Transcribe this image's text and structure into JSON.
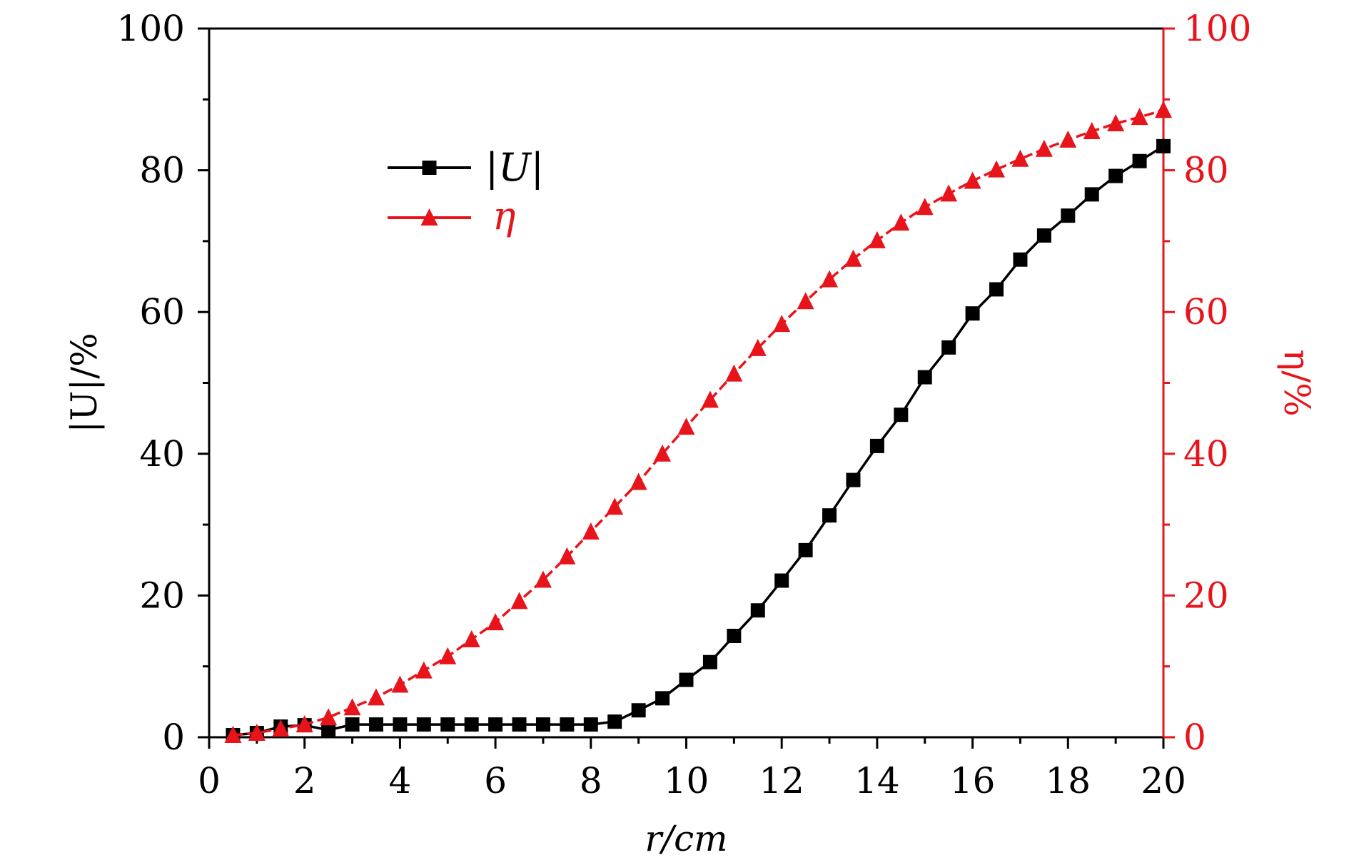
{
  "chart_data": {
    "type": "line",
    "title": "",
    "xlabel": "r/cm",
    "ylabel_left": "|U|/%",
    "ylabel_right": "η/%",
    "xlim": [
      0,
      20
    ],
    "ylim_left": [
      0,
      100
    ],
    "ylim_right": [
      0,
      100
    ],
    "grid": false,
    "legend_position": "upper-left",
    "x_ticks": [
      0,
      2,
      4,
      6,
      8,
      10,
      12,
      14,
      16,
      18,
      20
    ],
    "x_tick_labels": [
      "0",
      "2",
      "4",
      "6",
      "8",
      "10",
      "12",
      "14",
      "16",
      "18",
      "20"
    ],
    "y_left_ticks": [
      0,
      20,
      40,
      60,
      80,
      100
    ],
    "y_left_tick_labels": [
      "0",
      "20",
      "40",
      "60",
      "80",
      "100"
    ],
    "y_right_ticks": [
      0,
      20,
      40,
      60,
      80,
      100
    ],
    "y_right_tick_labels": [
      "0",
      "20",
      "40",
      "60",
      "80",
      "100"
    ],
    "colors": {
      "axis_left": "#000000",
      "axis_right": "#e8141b",
      "series_U": "#000000",
      "series_eta": "#e8141b"
    },
    "x": [
      0.5,
      1,
      1.5,
      2,
      2.5,
      3,
      3.5,
      4,
      4.5,
      5,
      5.5,
      6,
      6.5,
      7,
      7.5,
      8,
      8.5,
      9,
      9.5,
      10,
      10.5,
      11,
      11.5,
      12,
      12.5,
      13,
      13.5,
      14,
      14.5,
      15,
      15.5,
      16,
      16.5,
      17,
      17.5,
      18,
      18.5,
      19,
      19.5,
      20
    ],
    "series": [
      {
        "name": "|U|",
        "axis": "left",
        "marker": "square",
        "values": [
          0.3,
          0.6,
          1.5,
          1.7,
          1.0,
          1.8,
          1.8,
          1.8,
          1.8,
          1.8,
          1.8,
          1.8,
          1.8,
          1.8,
          1.8,
          1.8,
          2.2,
          3.8,
          5.5,
          8.1,
          10.6,
          14.3,
          17.9,
          22.1,
          26.4,
          31.3,
          36.3,
          41.1,
          45.5,
          50.8,
          55.0,
          59.8,
          63.2,
          67.4,
          70.8,
          73.6,
          76.6,
          79.2,
          81.3,
          83.4
        ]
      },
      {
        "name": "η",
        "axis": "right",
        "marker": "triangle",
        "values": [
          0.3,
          0.6,
          1.2,
          1.8,
          2.8,
          4.2,
          5.6,
          7.4,
          9.4,
          11.4,
          13.8,
          16.2,
          19.2,
          22.2,
          25.5,
          29.0,
          32.5,
          36.0,
          40.0,
          43.8,
          47.6,
          51.3,
          54.9,
          58.3,
          61.5,
          64.6,
          67.5,
          70.1,
          72.6,
          74.8,
          76.7,
          78.5,
          80.1,
          81.6,
          83.0,
          84.3,
          85.5,
          86.6,
          87.5,
          88.5
        ]
      }
    ]
  }
}
